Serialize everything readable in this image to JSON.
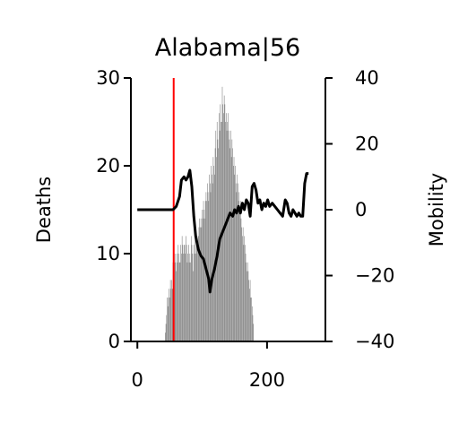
{
  "chart_data": {
    "type": "bar",
    "title": "Alabama|56",
    "ylabel": "Deaths",
    "y2label": "Mobility",
    "xlabel": "",
    "xlim": [
      -10,
      290
    ],
    "ylim": [
      0,
      30
    ],
    "y2lim": [
      -40,
      40
    ],
    "xticks": [
      0,
      200
    ],
    "yticks": [
      0,
      10,
      20,
      30
    ],
    "y2ticks": [
      40,
      20,
      0,
      -20,
      -40
    ],
    "ytick_labels": [
      "0",
      "10",
      "20",
      "30"
    ],
    "y2tick_labels": [
      "40",
      "20",
      "0",
      "−20",
      "−40"
    ],
    "xtick_labels": [
      "0",
      "200"
    ],
    "marker_day": 56,
    "bar_color": "#808080",
    "mobility_color": "#000000",
    "marker_color": "#ff0000",
    "bar_series": {
      "name": "",
      "start_day": 43,
      "values": [
        1,
        2,
        3,
        5,
        4,
        5,
        6,
        5,
        7,
        6,
        7,
        6,
        9,
        8,
        9,
        10,
        9,
        8,
        10,
        9,
        11,
        10,
        9,
        9,
        11,
        10,
        12,
        11,
        10,
        11,
        11,
        10,
        12,
        11,
        9,
        10,
        11,
        9,
        10,
        9,
        12,
        11,
        10,
        8,
        11,
        10,
        12,
        10,
        11,
        12,
        11,
        12,
        13,
        14,
        13,
        14,
        13,
        15,
        14,
        16,
        15,
        14,
        16,
        17,
        16,
        18,
        17,
        16,
        19,
        18,
        17,
        20,
        19,
        18,
        21,
        20,
        19,
        22,
        24,
        21,
        25,
        23,
        22,
        26,
        24,
        27,
        25,
        25,
        29,
        27,
        26,
        28,
        27,
        25,
        26,
        24,
        25,
        26,
        24,
        23,
        22,
        24,
        21,
        23,
        22,
        20,
        21,
        19,
        20,
        18,
        17,
        19,
        18,
        16,
        17,
        15,
        16,
        14,
        13,
        12,
        13,
        11,
        12,
        11,
        10,
        9,
        8,
        9,
        8,
        7,
        6,
        7,
        5,
        5,
        4,
        3,
        2
      ]
    },
    "mobility_series": {
      "name": "",
      "points": [
        [
          0,
          0
        ],
        [
          55,
          0
        ],
        [
          60,
          1
        ],
        [
          65,
          4
        ],
        [
          68,
          9
        ],
        [
          72,
          10
        ],
        [
          75,
          9
        ],
        [
          78,
          10
        ],
        [
          81,
          12
        ],
        [
          84,
          7
        ],
        [
          87,
          -2
        ],
        [
          90,
          -8
        ],
        [
          94,
          -12
        ],
        [
          98,
          -14
        ],
        [
          102,
          -15
        ],
        [
          106,
          -18
        ],
        [
          110,
          -21
        ],
        [
          112,
          -25
        ],
        [
          115,
          -21
        ],
        [
          119,
          -18
        ],
        [
          123,
          -14
        ],
        [
          127,
          -9
        ],
        [
          131,
          -7
        ],
        [
          135,
          -5
        ],
        [
          139,
          -3
        ],
        [
          143,
          -1
        ],
        [
          147,
          -2
        ],
        [
          150,
          0
        ],
        [
          153,
          -1
        ],
        [
          156,
          1
        ],
        [
          159,
          -1
        ],
        [
          162,
          2
        ],
        [
          165,
          0
        ],
        [
          168,
          3
        ],
        [
          171,
          2
        ],
        [
          174,
          -2
        ],
        [
          177,
          7
        ],
        [
          180,
          8
        ],
        [
          183,
          6
        ],
        [
          186,
          2
        ],
        [
          189,
          3
        ],
        [
          192,
          0
        ],
        [
          195,
          2
        ],
        [
          198,
          1
        ],
        [
          201,
          3
        ],
        [
          204,
          1
        ],
        [
          208,
          2
        ],
        [
          212,
          1
        ],
        [
          216,
          0
        ],
        [
          220,
          -1
        ],
        [
          224,
          -2
        ],
        [
          228,
          3
        ],
        [
          231,
          2
        ],
        [
          234,
          -1
        ],
        [
          237,
          -2
        ],
        [
          240,
          0
        ],
        [
          243,
          -1
        ],
        [
          246,
          -2
        ],
        [
          249,
          -1
        ],
        [
          252,
          -2
        ],
        [
          255,
          -2
        ],
        [
          258,
          8
        ],
        [
          261,
          11
        ],
        [
          264,
          11
        ]
      ]
    }
  }
}
